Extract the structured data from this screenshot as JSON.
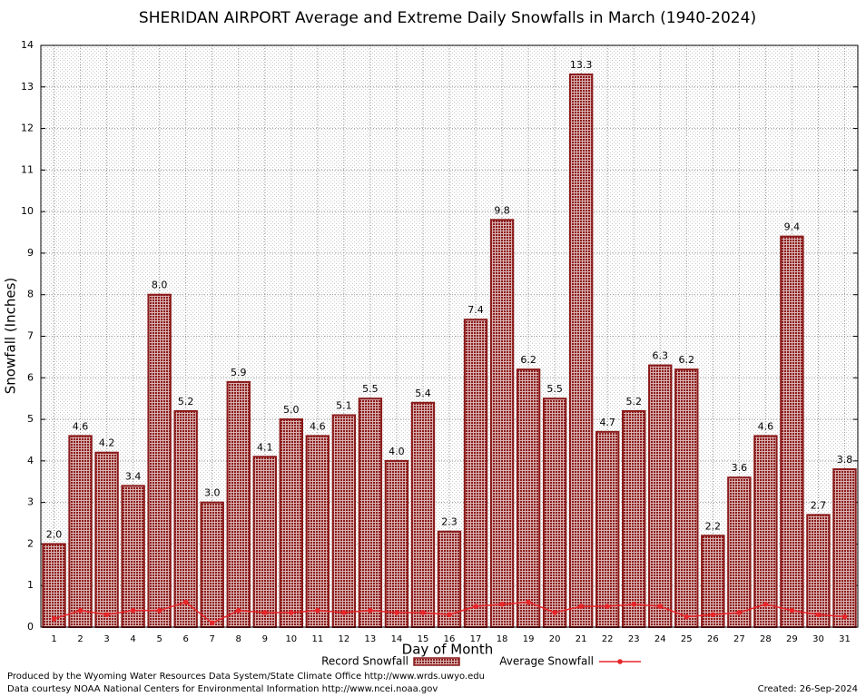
{
  "chart_data": {
    "type": "bar",
    "title": "SHERIDAN AIRPORT Average and Extreme Daily Snowfalls in March (1940-2024)",
    "xlabel": "Day of Month",
    "ylabel": "Snowfall (Inches)",
    "categories": [
      "1",
      "2",
      "3",
      "4",
      "5",
      "6",
      "7",
      "8",
      "9",
      "10",
      "11",
      "12",
      "13",
      "14",
      "15",
      "16",
      "17",
      "18",
      "19",
      "20",
      "21",
      "22",
      "23",
      "24",
      "25",
      "26",
      "27",
      "28",
      "29",
      "30",
      "31"
    ],
    "series": [
      {
        "name": "Record Snowfall",
        "color": "#8b1a1a",
        "values": [
          2.0,
          4.6,
          4.2,
          3.4,
          8.0,
          5.2,
          3.0,
          5.9,
          4.1,
          5.0,
          4.6,
          5.1,
          5.5,
          4.0,
          5.4,
          2.3,
          7.4,
          9.8,
          6.2,
          5.5,
          13.3,
          4.7,
          5.2,
          6.3,
          6.2,
          2.2,
          3.6,
          4.6,
          9.4,
          2.7,
          3.8
        ],
        "value_labels": [
          "2.0",
          "4.6",
          "4.2",
          "3.4",
          "8.0",
          "5.2",
          "3.0",
          "5.9",
          "4.1",
          "5.0",
          "4.6",
          "5.1",
          "5.5",
          "4.0",
          "5.4",
          "2.3",
          "7.4",
          "9.8",
          "6.2",
          "5.5",
          "13.3",
          "4.7",
          "5.2",
          "6.3",
          "6.2",
          "2.2",
          "3.6",
          "4.6",
          "9.4",
          "2.7",
          "3.8"
        ]
      },
      {
        "name": "Average Snowfall",
        "type": "line",
        "color": "#e8262a",
        "values": [
          0.2,
          0.4,
          0.3,
          0.4,
          0.4,
          0.6,
          0.1,
          0.4,
          0.35,
          0.35,
          0.4,
          0.35,
          0.4,
          0.35,
          0.35,
          0.3,
          0.5,
          0.55,
          0.6,
          0.35,
          0.5,
          0.5,
          0.55,
          0.5,
          0.25,
          0.3,
          0.35,
          0.55,
          0.4,
          0.3,
          0.25
        ]
      }
    ],
    "ylim": [
      0,
      14
    ],
    "yticks": [
      0,
      1,
      2,
      3,
      4,
      5,
      6,
      7,
      8,
      9,
      10,
      11,
      12,
      13,
      14
    ],
    "grid": true
  },
  "footer": {
    "lines": [
      "Produced by the Wyoming Water Resources Data System/State Climate Office http://www.wrds.uwyo.edu",
      "Data courtesy NOAA National Centers for Environmental Information http://www.ncei.noaa.gov"
    ],
    "created": "Created: 26-Sep-2024"
  }
}
